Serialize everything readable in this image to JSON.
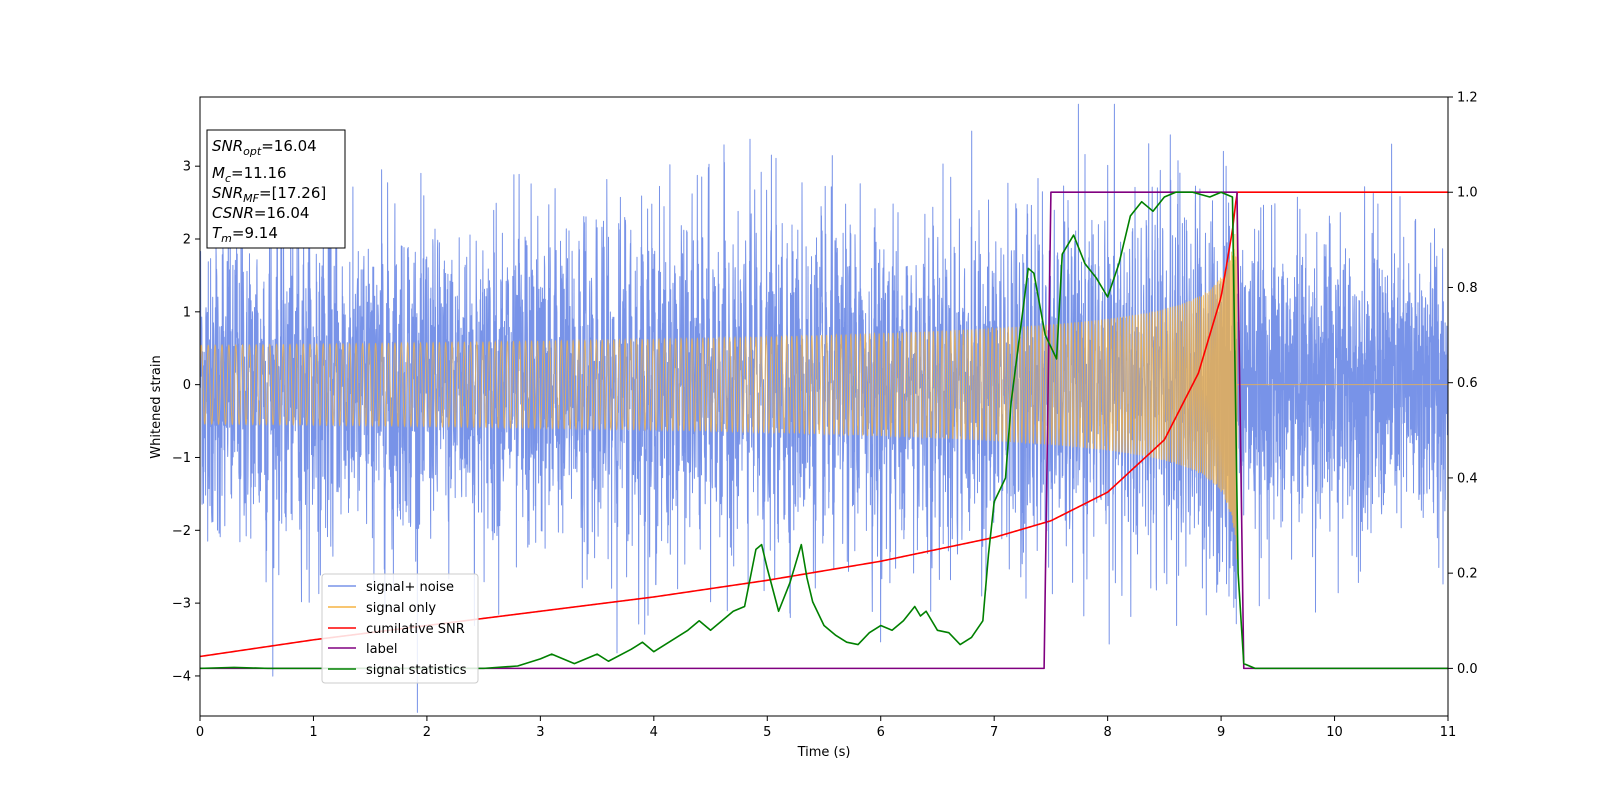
{
  "chart_data": {
    "type": "line",
    "xlabel": "Time (s)",
    "ylabel": "Whitened strain",
    "xlim": [
      0,
      11
    ],
    "ylim_left": [
      -4.55,
      3.95
    ],
    "ylim_right": [
      -0.1,
      1.2
    ],
    "x_ticks": [
      0,
      1,
      2,
      3,
      4,
      5,
      6,
      7,
      8,
      9,
      10,
      11
    ],
    "y_ticks_left": [
      -4,
      -3,
      -2,
      -1,
      0,
      1,
      2,
      3
    ],
    "y_ticks_right": [
      0.0,
      0.2,
      0.4,
      0.6,
      0.8,
      1.0,
      1.2
    ],
    "grid": false,
    "legend_position": "lower-left",
    "legend": [
      "signal+ noise",
      "signal only",
      "cumilative SNR",
      "label",
      "signal statistics"
    ],
    "annotation": {
      "snr_opt": "=16.04",
      "mc": "=11.16",
      "snr_mf": "=[17.26]",
      "csnr": "=16.04",
      "tm": "=9.14"
    },
    "series": [
      {
        "name": "signal+ noise",
        "axis": "left",
        "color": "#7893e8",
        "description": "white noise (std ~1) plus chirp; dense band",
        "noise_std": 1.0,
        "x_range": [
          0,
          11
        ]
      },
      {
        "name": "signal only",
        "axis": "left",
        "color": "#f5b342",
        "description": "chirp rising in amplitude until merger at ~9.14 s",
        "merger_time": 9.14,
        "peak_amplitude": 2.5
      },
      {
        "name": "cumilative SNR",
        "axis": "right",
        "color": "#ff0000",
        "x": [
          0,
          1,
          2,
          3,
          4,
          5,
          6,
          7,
          7.5,
          8,
          8.5,
          8.8,
          9.0,
          9.1,
          9.14,
          11
        ],
        "y": [
          0.025,
          0.06,
          0.09,
          0.12,
          0.15,
          0.185,
          0.225,
          0.275,
          0.31,
          0.37,
          0.48,
          0.62,
          0.78,
          0.92,
          1.0,
          1.0
        ]
      },
      {
        "name": "label",
        "axis": "right",
        "color": "#800080",
        "x": [
          0,
          7.44,
          7.5,
          9.14,
          9.2,
          11
        ],
        "y": [
          0,
          0,
          1,
          1,
          0,
          0
        ]
      },
      {
        "name": "signal statistics",
        "axis": "right",
        "color": "#008000",
        "x": [
          0,
          0.3,
          0.6,
          1,
          2,
          2.5,
          2.8,
          3.0,
          3.1,
          3.3,
          3.4,
          3.5,
          3.6,
          3.8,
          3.9,
          4.0,
          4.1,
          4.2,
          4.3,
          4.4,
          4.5,
          4.6,
          4.7,
          4.8,
          4.9,
          4.95,
          5.0,
          5.1,
          5.2,
          5.3,
          5.35,
          5.4,
          5.5,
          5.6,
          5.7,
          5.8,
          5.9,
          6.0,
          6.1,
          6.2,
          6.3,
          6.35,
          6.4,
          6.5,
          6.6,
          6.7,
          6.8,
          6.9,
          6.95,
          7.0,
          7.1,
          7.15,
          7.3,
          7.35,
          7.45,
          7.55,
          7.6,
          7.7,
          7.8,
          7.9,
          8.0,
          8.1,
          8.2,
          8.3,
          8.4,
          8.5,
          8.6,
          8.75,
          8.9,
          9.0,
          9.1,
          9.15,
          9.2,
          9.3,
          11
        ],
        "y": [
          0,
          0.002,
          0,
          0,
          0,
          0,
          0.005,
          0.02,
          0.03,
          0.01,
          0.02,
          0.03,
          0.015,
          0.04,
          0.055,
          0.035,
          0.05,
          0.065,
          0.08,
          0.1,
          0.08,
          0.1,
          0.12,
          0.13,
          0.25,
          0.26,
          0.21,
          0.12,
          0.18,
          0.26,
          0.19,
          0.14,
          0.09,
          0.07,
          0.055,
          0.05,
          0.075,
          0.09,
          0.08,
          0.1,
          0.13,
          0.11,
          0.12,
          0.08,
          0.075,
          0.05,
          0.065,
          0.1,
          0.24,
          0.35,
          0.4,
          0.56,
          0.84,
          0.83,
          0.7,
          0.65,
          0.87,
          0.91,
          0.85,
          0.82,
          0.78,
          0.85,
          0.95,
          0.98,
          0.96,
          0.99,
          1.0,
          1.0,
          0.99,
          1.0,
          0.99,
          0.2,
          0.01,
          0,
          0
        ]
      }
    ]
  }
}
